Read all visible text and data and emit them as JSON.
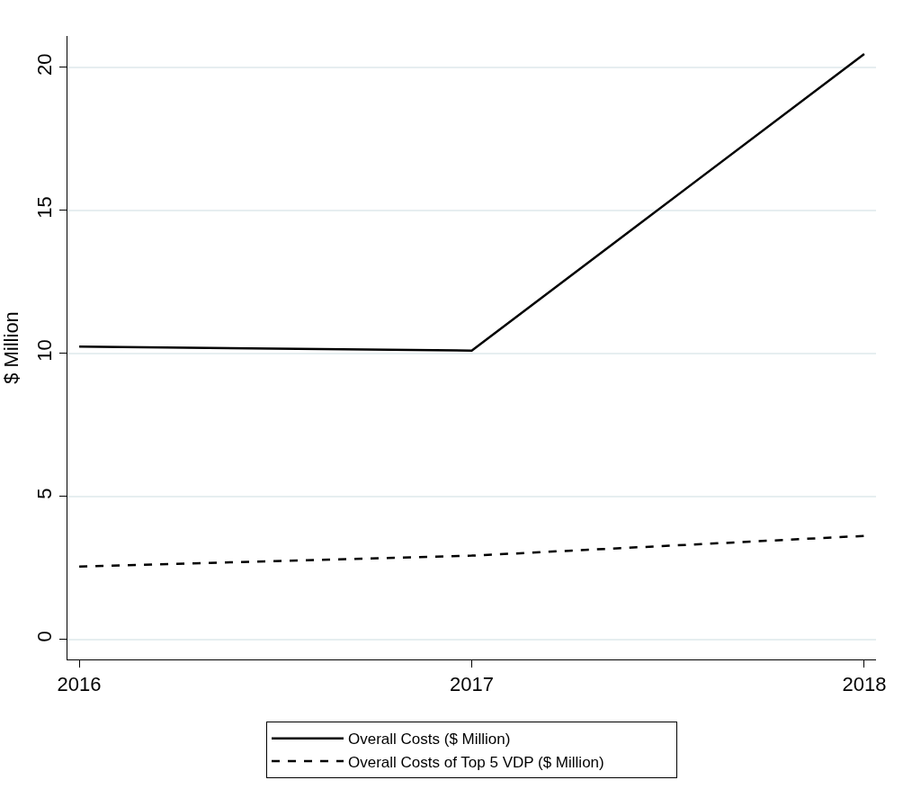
{
  "chart_data": {
    "type": "line",
    "ylabel": "$ Million",
    "x": [
      2016,
      2017,
      2018
    ],
    "series": [
      {
        "name": "Overall Costs ($ Million)",
        "color": "#000000",
        "values": [
          10.24,
          10.1,
          20.47
        ],
        "line_style": "solid"
      },
      {
        "name": "Overall Costs of Top 5 VDP ($ Million)",
        "color": "#000000",
        "values": [
          2.55,
          2.93,
          3.62
        ],
        "line_style": "dashed"
      }
    ],
    "xlim": [
      2015.97,
      2018.03
    ],
    "xticks": [
      2016,
      2017,
      2018
    ],
    "ylim": [
      -0.7,
      21.1
    ],
    "yticks": [
      0,
      5,
      10,
      15,
      20
    ],
    "grid": "y",
    "legend": "bottom",
    "marker": "none"
  }
}
